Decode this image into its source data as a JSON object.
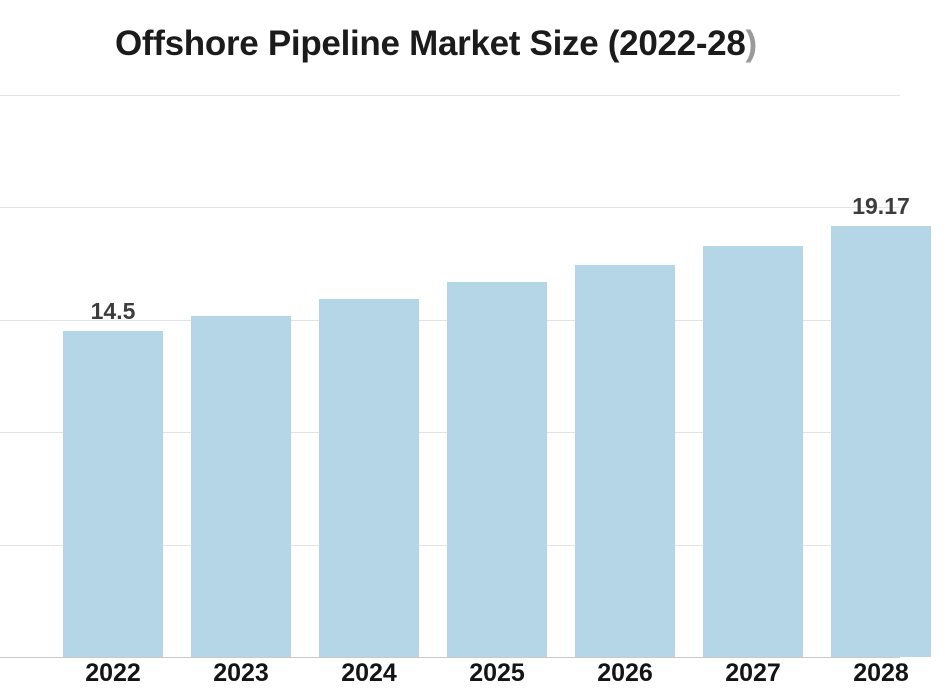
{
  "title": {
    "main": "Offshore Pipeline Market Size (2022-28",
    "closing_paren": ")"
  },
  "chart_data": {
    "type": "bar",
    "title": "Offshore Pipeline Market Size (2022-28)",
    "categories": [
      "2022",
      "2023",
      "2024",
      "2025",
      "2026",
      "2027",
      "2028"
    ],
    "values": [
      14.5,
      15.19,
      15.91,
      16.67,
      17.46,
      18.3,
      19.17
    ],
    "data_labels": [
      "14.5",
      "",
      "",
      "",
      "",
      "",
      "19.17"
    ],
    "xlabel": "",
    "ylabel": "",
    "ylim": [
      0,
      25
    ],
    "gridlines_y": [
      0,
      5,
      10,
      15,
      20,
      25
    ],
    "grid": "horizontal",
    "y_tick_labels_visible": false,
    "legend": "none",
    "series_name": "Market Size"
  },
  "colors": {
    "background": "#ffffff",
    "bar_fill": "#b4d6e7",
    "gridline": "#e3e3e3",
    "axis_line": "#c9c9c9",
    "title_text": "#1b1b1b",
    "title_paren": "#9a9a9a",
    "value_label": "#3d3d3d",
    "year_label": "#141414"
  }
}
